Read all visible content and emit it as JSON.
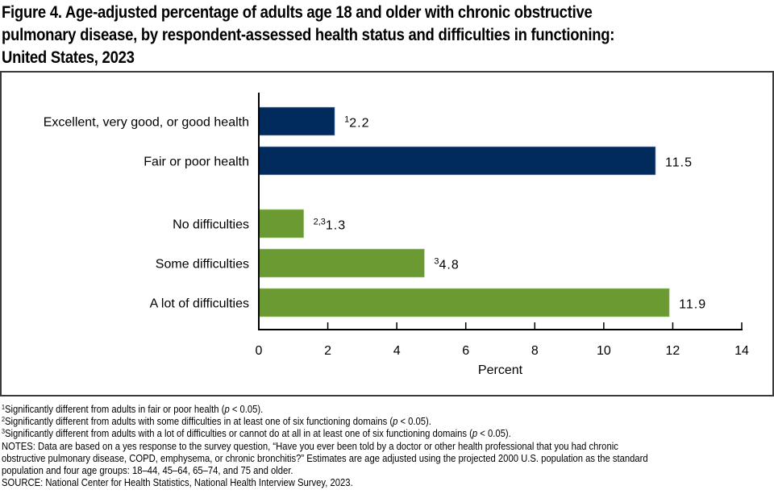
{
  "chart_data": {
    "type": "bar",
    "orientation": "horizontal",
    "title": "Figure 4. Age-adjusted percentage of adults age 18 and older with chronic obstructive pulmonary disease, by respondent-assessed health status and difficulties in functioning: United States, 2023",
    "title_lines": [
      "Figure 4. Age-adjusted percentage of adults age 18 and older with chronic obstructive",
      "pulmonary disease, by respondent-assessed health status and difficulties in functioning:",
      "United States, 2023"
    ],
    "xlabel": "Percent",
    "ylabel": "",
    "xlim": [
      0,
      14
    ],
    "xticks": [
      0,
      2,
      4,
      6,
      8,
      10,
      12,
      14
    ],
    "grid": false,
    "legend": "none",
    "groups": [
      {
        "name": "Health status",
        "color": "#002b5c",
        "categories": [
          "Excellent, very good, or good health",
          "Fair or poor health"
        ],
        "values": [
          2.2,
          11.5
        ],
        "superscripts": [
          "1",
          ""
        ],
        "display_labels": [
          "2.2",
          "11.5"
        ]
      },
      {
        "name": "Difficulties in functioning",
        "color": "#6a9a31",
        "categories": [
          "No difficulties",
          "Some difficulties",
          "A lot of difficulties"
        ],
        "values": [
          1.3,
          4.8,
          11.9
        ],
        "superscripts": [
          "2,3",
          "3",
          ""
        ],
        "display_labels": [
          "1.3",
          "4.8",
          "11.9"
        ]
      }
    ]
  },
  "footnotes": [
    {
      "sup": "1",
      "text_before": "Significantly different from adults in fair or poor health (",
      "italic": "p",
      "text_after": " < 0.05)."
    },
    {
      "sup": "2",
      "text_before": "Significantly different from adults with some difficulties in at least one of six functioning domains (",
      "italic": "p",
      "text_after": " < 0.05)."
    },
    {
      "sup": "3",
      "text_before": "Significantly different from adults with a lot of difficulties or cannot do at all in at least one of six functioning domains (",
      "italic": "p",
      "text_after": " < 0.05)."
    }
  ],
  "notes": [
    "NOTES: Data are based on a yes response to the survey question, “Have you ever been told by a doctor or other health professional that you had chronic",
    "obstructive pulmonary disease, COPD, emphysema, or chronic bronchitis?” Estimates are age adjusted using the projected 2000 U.S. population as the standard",
    "population and four age groups: 18–44, 45–64, 65–74, and 75 and older."
  ],
  "source": "SOURCE: National Center for Health Statistics, National Health Interview Survey, 2023."
}
